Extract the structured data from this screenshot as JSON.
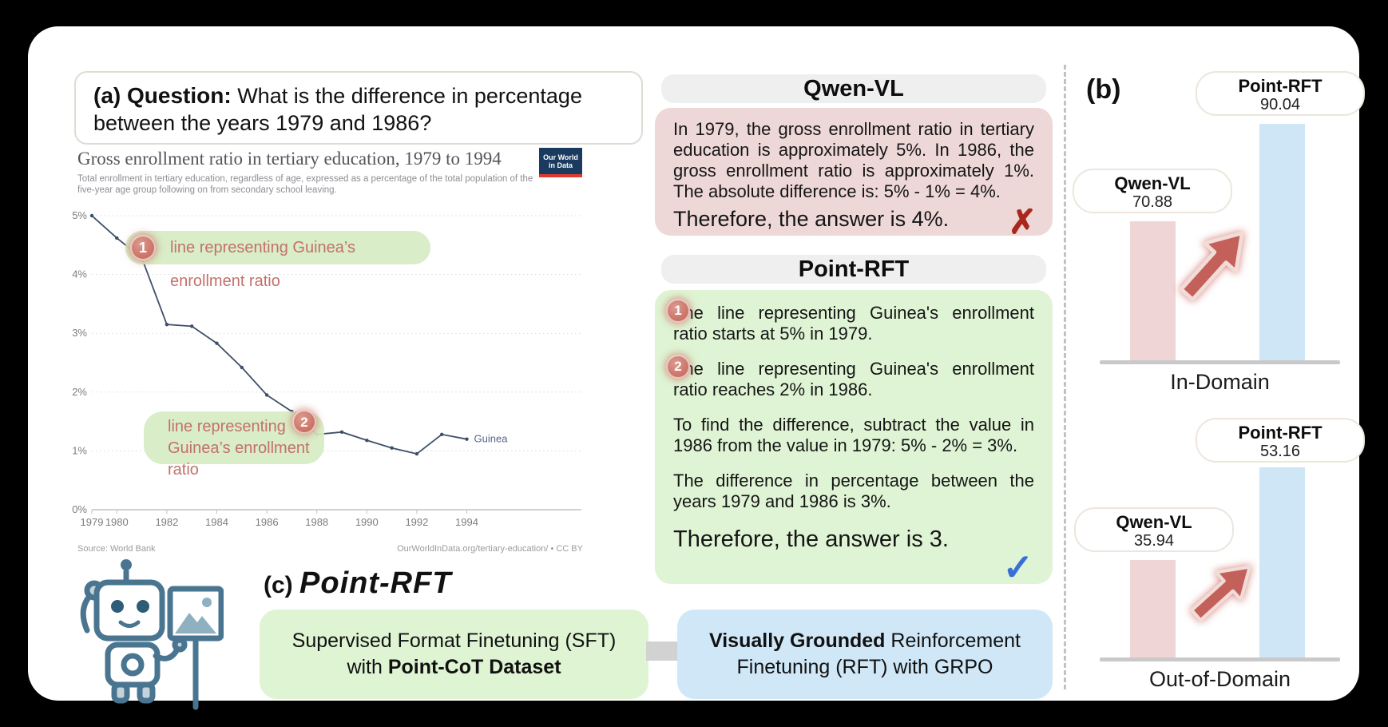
{
  "panel_a": {
    "label": "(a)",
    "question_label": "Question:",
    "question_text": "What is the difference in percentage between the years 1979 and 1986?",
    "chart": {
      "title": "Gross enrollment ratio in tertiary education, 1979 to 1994",
      "subtitle": "Total enrollment in tertiary education, regardless of age, expressed as a percentage of the total population of the five-year age group following on from secondary school leaving.",
      "logo_line1": "Our World",
      "logo_line2": "in Data",
      "source_left": "Source: World Bank",
      "source_right": "OurWorldInData.org/tertiary-education/ • CC BY",
      "annotation1": {
        "badge": "1",
        "text": "line representing Guinea’s enrollment ratio"
      },
      "annotation2": {
        "badge": "2",
        "line1": "line representing",
        "line2": "Guinea’s enrollment ratio"
      }
    }
  },
  "chart_data": [
    {
      "type": "line",
      "title": "Gross enrollment ratio in tertiary education, 1979 to 1994",
      "xlabel": "",
      "ylabel": "",
      "ylim": [
        0,
        5
      ],
      "grid": "dotted horizontal",
      "legend_position": "end-of-line label",
      "yticks": [
        {
          "label": "5%",
          "value": 5
        },
        {
          "label": "4%",
          "value": 4
        },
        {
          "label": "3%",
          "value": 3
        },
        {
          "label": "2%",
          "value": 2
        },
        {
          "label": "1%",
          "value": 1
        },
        {
          "label": "0%",
          "value": 0
        }
      ],
      "xticks": [
        1979,
        1980,
        1982,
        1984,
        1986,
        1988,
        1990,
        1992,
        1994
      ],
      "series": [
        {
          "name": "Guinea",
          "x": [
            1979,
            1980,
            1981,
            1982,
            1983,
            1984,
            1985,
            1986,
            1987,
            1988,
            1989,
            1990,
            1991,
            1992,
            1993,
            1994
          ],
          "values": [
            5.0,
            4.62,
            4.28,
            3.15,
            3.12,
            2.83,
            2.42,
            1.95,
            1.67,
            1.28,
            1.32,
            1.18,
            1.05,
            0.95,
            1.28,
            1.2
          ]
        }
      ]
    },
    {
      "type": "bar",
      "title": "In-Domain",
      "categories": [
        "Qwen-VL",
        "Point-RFT"
      ],
      "values": [
        70.88,
        90.04
      ]
    },
    {
      "type": "bar",
      "title": "Out-of-Domain",
      "categories": [
        "Qwen-VL",
        "Point-RFT"
      ],
      "values": [
        35.94,
        53.16
      ]
    }
  ],
  "middle": {
    "qwen": {
      "title": "Qwen-VL",
      "body": "In 1979, the gross enrollment ratio in tertiary education is approximately 5%. In 1986, the gross enrollment ratio is approximately 1%. The absolute difference is: 5% - 1% = 4%.",
      "answer": "Therefore, the answer is 4%.",
      "mark": "✗"
    },
    "point": {
      "title": "Point-RFT",
      "steps": [
        {
          "badge": "1",
          "text": "The line representing Guinea's enrollment ratio starts at 5% in 1979."
        },
        {
          "badge": "2",
          "text": "The line representing Guinea's enrollment ratio reaches 2% in 1986."
        },
        {
          "badge": "",
          "text": "To find the difference, subtract the value in 1986 from the value in 1979: 5% - 2% = 3%."
        },
        {
          "badge": "",
          "text": "The difference in percentage between the years 1979 and 1986 is 3%."
        }
      ],
      "answer": "Therefore, the answer is 3.",
      "mark": "✓"
    }
  },
  "panel_b": {
    "label": "(b)",
    "charts": [
      {
        "name": "In-Domain",
        "bars": [
          {
            "label": "Qwen-VL",
            "value": "70.88"
          },
          {
            "label": "Point-RFT",
            "value": "90.04"
          }
        ]
      },
      {
        "name": "Out-of-Domain",
        "bars": [
          {
            "label": "Qwen-VL",
            "value": "35.94"
          },
          {
            "label": "Point-RFT",
            "value": "53.16"
          }
        ]
      }
    ]
  },
  "panel_c": {
    "label": "(c)",
    "title": "Point-RFT",
    "sft_line1": "Supervised Format Finetuning (SFT)",
    "sft_line2_prefix": "with ",
    "sft_line2_bold": "Point-CoT Dataset",
    "rft_line1_bold": "Visually Grounded",
    "rft_line1_rest": " Reinforcement",
    "rft_line2": "Finetuning (RFT) with GRPO"
  },
  "colors": {
    "qwen_box": "#eed7d7",
    "point_box": "#dff4d4",
    "annotation_green": "#d6ecc4",
    "annotation_text": "#c4706b",
    "bar_pink": "#f0d5d6",
    "bar_blue": "#cfe6f6",
    "arrow_red": "#c4605a",
    "check_blue": "#3a6fd8",
    "cross_red": "#a8281d",
    "line_color": "#3d4f68",
    "owid_navy": "#1a3a5f",
    "owid_red": "#dc3b2e"
  }
}
